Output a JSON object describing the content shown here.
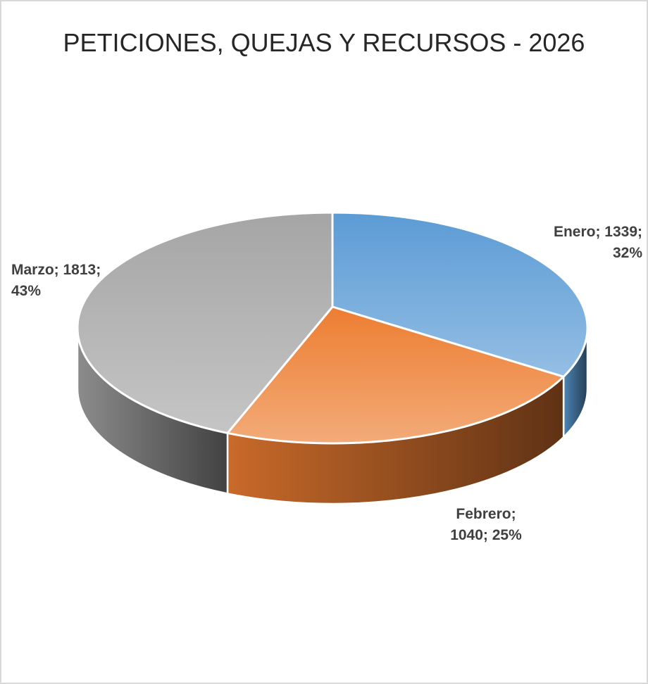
{
  "chart_data": {
    "type": "pie",
    "title": "PETICIONES, QUEJAS Y RECURSOS - 2026",
    "categories": [
      "Enero",
      "Febrero",
      "Marzo"
    ],
    "values": [
      1339,
      1040,
      1813
    ],
    "value_labels": [
      "Enero; 1339; 32%",
      "Febrero; 1040; 25%",
      "Marzo; 1813; 43%"
    ],
    "colors": [
      "#5b9bd5",
      "#ed7d31",
      "#a5a5a5"
    ]
  }
}
